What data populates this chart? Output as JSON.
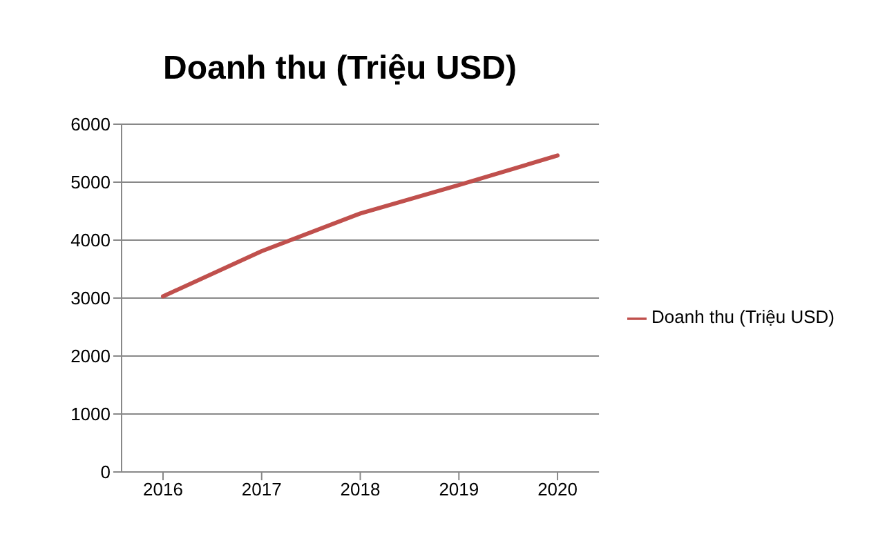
{
  "chart_data": {
    "type": "line",
    "title": "Doanh thu (Triệu USD)",
    "categories": [
      "2016",
      "2017",
      "2018",
      "2019",
      "2020"
    ],
    "series": [
      {
        "name": "Doanh thu (Triệu USD)",
        "color": "#c0504d",
        "values": [
          3030,
          3810,
          4460,
          4950,
          5460
        ]
      }
    ],
    "ylim": [
      0,
      6000
    ],
    "yticks": [
      0,
      1000,
      2000,
      3000,
      4000,
      5000,
      6000
    ],
    "grid": "y",
    "legend": "right",
    "marker": "none",
    "line_style": "solid"
  }
}
